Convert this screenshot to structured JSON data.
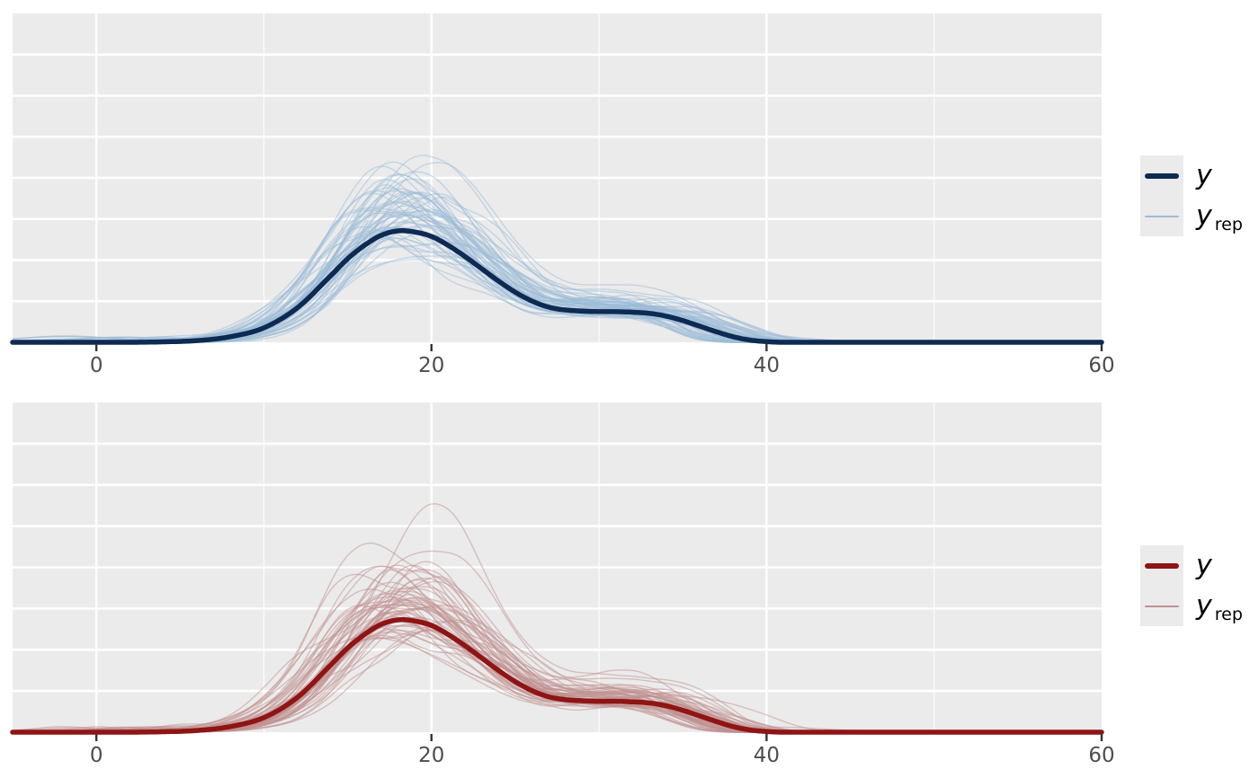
{
  "figure": {
    "background": "#ffffff",
    "panel_bg": "#ebebeb",
    "grid_color": "#ffffff",
    "tick_mark_color": "#333333",
    "tick_label_color": "#4d4d4d"
  },
  "legend_top": {
    "y_label": "y",
    "yrep_label": "y",
    "yrep_sub": "rep"
  },
  "legend_bottom": {
    "y_label": "y",
    "yrep_label": "y",
    "yrep_sub": "rep"
  },
  "chart_data": [
    {
      "type": "line",
      "name": "ppc-density-overlay-blue",
      "color_scheme": "blue",
      "title": "",
      "xlabel": "",
      "ylabel": "",
      "x_ticks": [
        0,
        20,
        40,
        60
      ],
      "x_minor_ticks": [
        10,
        30,
        50
      ],
      "xlim": [
        -5,
        60
      ],
      "y_axis_visible": false,
      "grid": true,
      "legend_position": "right",
      "legend": [
        {
          "label": "y"
        },
        {
          "label": "y",
          "subscript": "rep"
        }
      ],
      "series": [
        {
          "name": "y",
          "role": "observed-density",
          "color": "#0d2a52",
          "line_width": 5.5,
          "density": {
            "x": [
              -5,
              2,
              4,
              6,
              8,
              10,
              12,
              14,
              15,
              16,
              17,
              18,
              19,
              20,
              21,
              22,
              23,
              24,
              25,
              26,
              27,
              28,
              29,
              30,
              31,
              32,
              33,
              34,
              35,
              36,
              37,
              38,
              39,
              40,
              41,
              60
            ],
            "h": [
              0,
              0,
              0.004,
              0.015,
              0.05,
              0.13,
              0.31,
              0.6,
              0.75,
              0.87,
              0.96,
              1.0,
              0.99,
              0.95,
              0.87,
              0.77,
              0.66,
              0.55,
              0.45,
              0.37,
              0.315,
              0.29,
              0.28,
              0.275,
              0.275,
              0.27,
              0.26,
              0.235,
              0.195,
              0.145,
              0.095,
              0.05,
              0.02,
              0.006,
              0,
              0
            ]
          }
        },
        {
          "name": "y_rep",
          "role": "replicated-densities",
          "color": "#9cbcd8",
          "opacity": 0.5,
          "line_width": 1.4,
          "count": 60,
          "seed": 20
        }
      ]
    },
    {
      "type": "line",
      "name": "ppc-density-overlay-red",
      "color_scheme": "red",
      "title": "",
      "xlabel": "",
      "ylabel": "",
      "x_ticks": [
        0,
        20,
        40,
        60
      ],
      "x_minor_ticks": [
        10,
        30,
        50
      ],
      "xlim": [
        -5,
        60
      ],
      "y_axis_visible": false,
      "grid": true,
      "legend_position": "right",
      "legend": [
        {
          "label": "y"
        },
        {
          "label": "y",
          "subscript": "rep"
        }
      ],
      "series": [
        {
          "name": "y",
          "role": "observed-density",
          "color": "#8f1414",
          "line_width": 5.5,
          "density": {
            "x": [
              -5,
              2,
              4,
              6,
              8,
              10,
              12,
              14,
              15,
              16,
              17,
              18,
              19,
              20,
              21,
              22,
              23,
              24,
              25,
              26,
              27,
              28,
              29,
              30,
              31,
              32,
              33,
              34,
              35,
              36,
              37,
              38,
              39,
              40,
              41,
              60
            ],
            "h": [
              0,
              0,
              0.004,
              0.015,
              0.05,
              0.13,
              0.31,
              0.6,
              0.75,
              0.87,
              0.96,
              1.0,
              0.99,
              0.95,
              0.87,
              0.77,
              0.66,
              0.55,
              0.45,
              0.37,
              0.315,
              0.29,
              0.28,
              0.275,
              0.275,
              0.27,
              0.26,
              0.235,
              0.195,
              0.145,
              0.095,
              0.05,
              0.02,
              0.006,
              0,
              0
            ]
          }
        },
        {
          "name": "y_rep",
          "role": "replicated-densities",
          "color": "#c09090",
          "opacity": 0.5,
          "line_width": 1.4,
          "count": 60,
          "seed": 2020
        }
      ]
    }
  ]
}
